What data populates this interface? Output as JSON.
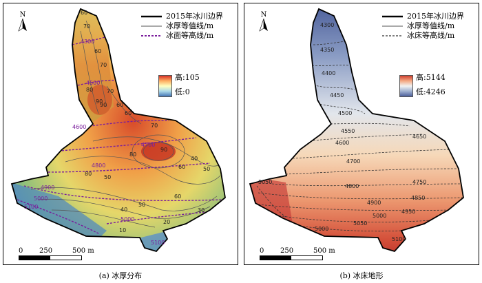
{
  "panel_a": {
    "north": "N",
    "legend": [
      {
        "label": "2015年冰川边界",
        "style": "solid-thick",
        "color": "#000000"
      },
      {
        "label": "冰厚等值线/m",
        "style": "solid-thin",
        "color": "#555555"
      },
      {
        "label": "冰面等高线/m",
        "style": "dashed",
        "color": "#7a1d9c"
      }
    ],
    "colorbar": {
      "high_label": "高:105",
      "low_label": "低:0"
    },
    "scale": {
      "ticks": [
        "0",
        "250",
        "500 m"
      ]
    },
    "thickness_labels": [
      "60",
      "70",
      "80",
      "90",
      "70",
      "60",
      "90",
      "80",
      "60",
      "50",
      "40",
      "30",
      "20",
      "10",
      "60",
      "50",
      "70",
      "40",
      "60",
      "80",
      "90",
      "70",
      "60",
      "50"
    ],
    "surface_labels": [
      "4300",
      "4500",
      "4600",
      "4700",
      "4800",
      "4900",
      "5000",
      "5100",
      "5000",
      "5100"
    ],
    "caption": "(a) 冰厚分布"
  },
  "panel_b": {
    "north": "N",
    "legend": [
      {
        "label": "2015年冰川边界",
        "style": "solid-thick",
        "color": "#000000"
      },
      {
        "label": "冰厚等值线/m",
        "style": "solid-thin",
        "color": "#555555"
      },
      {
        "label": "冰床等高线/m",
        "style": "dashed",
        "color": "#333333"
      }
    ],
    "colorbar": {
      "high_label": "高:5144",
      "low_label": "低:4246"
    },
    "scale": {
      "ticks": [
        "0",
        "250",
        "500 m"
      ]
    },
    "bed_labels": [
      "4300",
      "4350",
      "4400",
      "4450",
      "4500",
      "4550",
      "4600",
      "4650",
      "4700",
      "4750",
      "4800",
      "4850",
      "4900",
      "4950",
      "5000",
      "5050",
      "5100",
      "5000",
      "5050"
    ],
    "caption": "(b) 冰床地形"
  }
}
